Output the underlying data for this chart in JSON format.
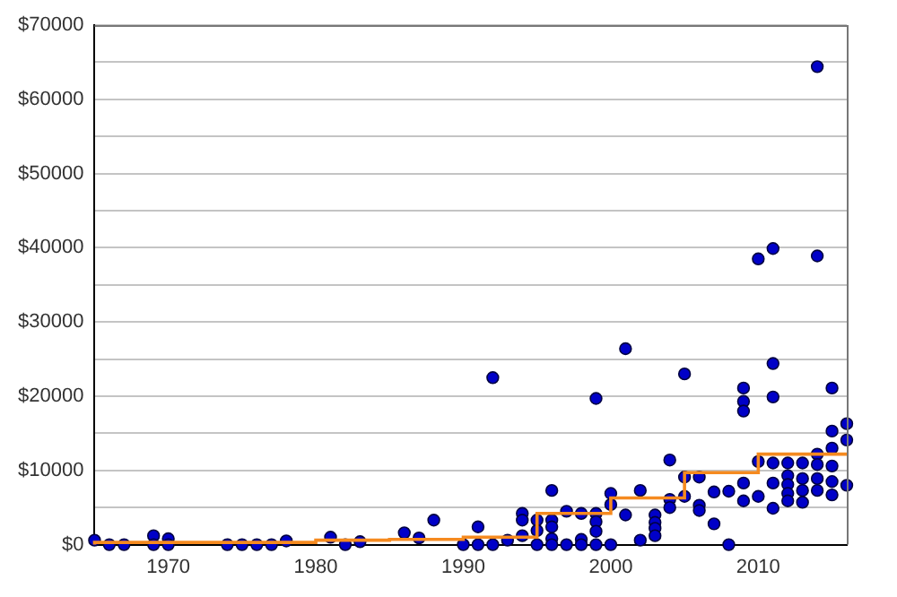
{
  "chart_data": {
    "type": "scatter",
    "xlim": [
      1965,
      2016
    ],
    "xticks": [
      1970,
      1980,
      1990,
      2000,
      2010
    ],
    "ylim": [
      0,
      70000
    ],
    "yticks": [
      {
        "value": 0,
        "label": "$0"
      },
      {
        "value": 5000,
        "label": null
      },
      {
        "value": 10000,
        "label": "$10000"
      },
      {
        "value": 15000,
        "label": null
      },
      {
        "value": 20000,
        "label": "$20000"
      },
      {
        "value": 25000,
        "label": null
      },
      {
        "value": 30000,
        "label": "$30000"
      },
      {
        "value": 35000,
        "label": null
      },
      {
        "value": 40000,
        "label": "$40000"
      },
      {
        "value": 45000,
        "label": null
      },
      {
        "value": 50000,
        "label": "$50000"
      },
      {
        "value": 55000,
        "label": null
      },
      {
        "value": 60000,
        "label": "$60000"
      },
      {
        "value": 65000,
        "label": null
      },
      {
        "value": 70000,
        "label": "$70000"
      }
    ],
    "grid": "y",
    "legend": false,
    "series": [
      {
        "type": "scatter",
        "color": "#0000c8",
        "marker": "circle",
        "x": [
          1965,
          1966,
          1967,
          1969,
          1969,
          1970,
          1970,
          1974,
          1975,
          1976,
          1977,
          1978,
          1981,
          1982,
          1983,
          1986,
          1987,
          1988,
          1990,
          1991,
          1991,
          1992,
          1992,
          1993,
          1994,
          1994,
          1994,
          1995,
          1995,
          1995,
          1996,
          1996,
          1996,
          1996,
          1996,
          1997,
          1997,
          1998,
          1998,
          1998,
          1999,
          1999,
          1999,
          1999,
          1999,
          2000,
          2000,
          2000,
          2001,
          2001,
          2002,
          2002,
          2003,
          2003,
          2003,
          2003,
          2004,
          2004,
          2004,
          2005,
          2005,
          2005,
          2006,
          2006,
          2006,
          2007,
          2007,
          2008,
          2008,
          2009,
          2009,
          2009,
          2009,
          2009,
          2010,
          2010,
          2010,
          2011,
          2011,
          2011,
          2011,
          2011,
          2011,
          2012,
          2012,
          2012,
          2012,
          2012,
          2013,
          2013,
          2013,
          2013,
          2014,
          2014,
          2014,
          2014,
          2014,
          2014,
          2015,
          2015,
          2015,
          2015,
          2015,
          2015,
          2016,
          2016,
          2016
        ],
        "values": [
          600,
          0,
          0,
          1200,
          0,
          800,
          0,
          0,
          0,
          0,
          0,
          500,
          1000,
          0,
          400,
          1600,
          900,
          3300,
          0,
          2400,
          0,
          22500,
          0,
          600,
          4200,
          3300,
          1200,
          3300,
          1900,
          0,
          7300,
          3300,
          2400,
          800,
          0,
          4500,
          0,
          4200,
          700,
          0,
          19700,
          4200,
          3100,
          1800,
          0,
          6900,
          5400,
          0,
          26400,
          4000,
          7300,
          600,
          4000,
          3000,
          2200,
          1200,
          11400,
          6100,
          5000,
          23000,
          9100,
          6500,
          9100,
          5300,
          4600,
          7100,
          2800,
          7200,
          0,
          21100,
          19300,
          18000,
          8300,
          5900,
          38500,
          11200,
          6500,
          39900,
          24400,
          19900,
          11000,
          8300,
          4900,
          11000,
          9300,
          8100,
          6900,
          5900,
          11000,
          8900,
          7300,
          5700,
          64400,
          38900,
          12200,
          10800,
          8900,
          7300,
          21100,
          15300,
          13000,
          10600,
          8500,
          6700,
          16300,
          14100,
          8000
        ]
      },
      {
        "type": "step",
        "color": "#f58a1f",
        "marker": "none",
        "x": [
          1965,
          1980,
          1985,
          1990,
          1995,
          2000,
          2005,
          2010,
          2015,
          2016
        ],
        "values": [
          0,
          300,
          600,
          700,
          1000,
          4200,
          6300,
          9700,
          12200,
          12200
        ]
      }
    ]
  }
}
